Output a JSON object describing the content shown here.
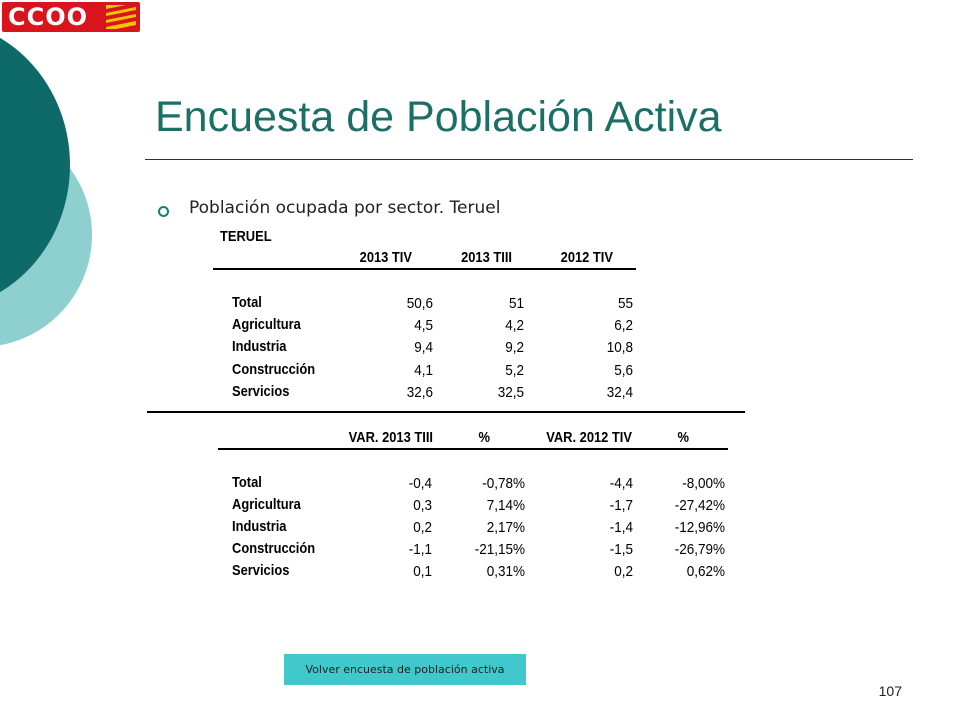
{
  "slide": {
    "title": "Encuesta de Población Activa",
    "bullet": "Población ocupada por sector. Teruel",
    "page_number": "107"
  },
  "logo": {
    "text": "CCOO",
    "colors": {
      "red": "#d8141c",
      "yellow": "#f5c400"
    }
  },
  "colors": {
    "title": "#1b6f66",
    "deco_dark": "#0e6a68",
    "deco_light": "#8ecfd0",
    "link_bg": "#40c8cc"
  },
  "table1": {
    "region": "TERUEL",
    "headers": [
      "2013 TIV",
      "2013 TIII",
      "2012 TIV"
    ],
    "rows": [
      {
        "label": "Total",
        "values": [
          "50,6",
          "51",
          "55"
        ]
      },
      {
        "label": "Agricultura",
        "values": [
          "4,5",
          "4,2",
          "6,2"
        ]
      },
      {
        "label": "Industria",
        "values": [
          "9,4",
          "9,2",
          "10,8"
        ]
      },
      {
        "label": "Construcción",
        "values": [
          "4,1",
          "5,2",
          "5,6"
        ]
      },
      {
        "label": "Servicios",
        "values": [
          "32,6",
          "32,5",
          "32,4"
        ]
      }
    ]
  },
  "table2": {
    "headers": [
      "VAR. 2013 TIII",
      "%",
      "VAR. 2012 TIV",
      "%"
    ],
    "rows": [
      {
        "label": "Total",
        "values": [
          "-0,4",
          "-0,78%",
          "-4,4",
          "-8,00%"
        ]
      },
      {
        "label": "Agricultura",
        "values": [
          "0,3",
          "7,14%",
          "-1,7",
          "-27,42%"
        ]
      },
      {
        "label": "Industria",
        "values": [
          "0,2",
          "2,17%",
          "-1,4",
          "-12,96%"
        ]
      },
      {
        "label": "Construcción",
        "values": [
          "-1,1",
          "-21,15%",
          "-1,5",
          "-26,79%"
        ]
      },
      {
        "label": "Servicios",
        "values": [
          "0,1",
          "0,31%",
          "0,2",
          "0,62%"
        ]
      }
    ]
  },
  "link": {
    "label": "Volver encuesta de población activa"
  }
}
